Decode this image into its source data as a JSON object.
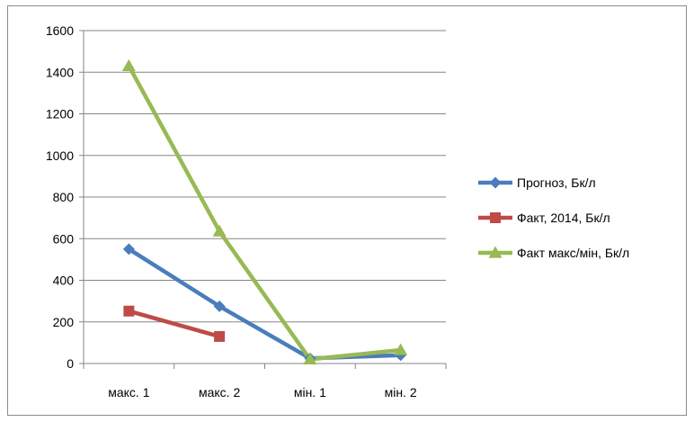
{
  "chart_data": {
    "type": "line",
    "categories": [
      "макс. 1",
      "макс. 2",
      "мін. 1",
      "мін. 2"
    ],
    "ylim": [
      0,
      1600
    ],
    "yticks": [
      0,
      200,
      400,
      600,
      800,
      1000,
      1200,
      1400,
      1600
    ],
    "grid": "horizontal",
    "legend_position": "right",
    "series": [
      {
        "name": "Прогноз, Бк/л",
        "values": [
          550,
          275,
          25,
          40
        ],
        "color": "#4a7ebb",
        "marker": "diamond"
      },
      {
        "name": "Факт, 2014, Бк/л",
        "values": [
          252,
          130,
          null,
          null
        ],
        "color": "#be4b48",
        "marker": "square"
      },
      {
        "name": "Факт макс/мін, Бк/л",
        "values": [
          1430,
          635,
          20,
          65
        ],
        "color": "#98b954",
        "marker": "triangle"
      }
    ]
  }
}
